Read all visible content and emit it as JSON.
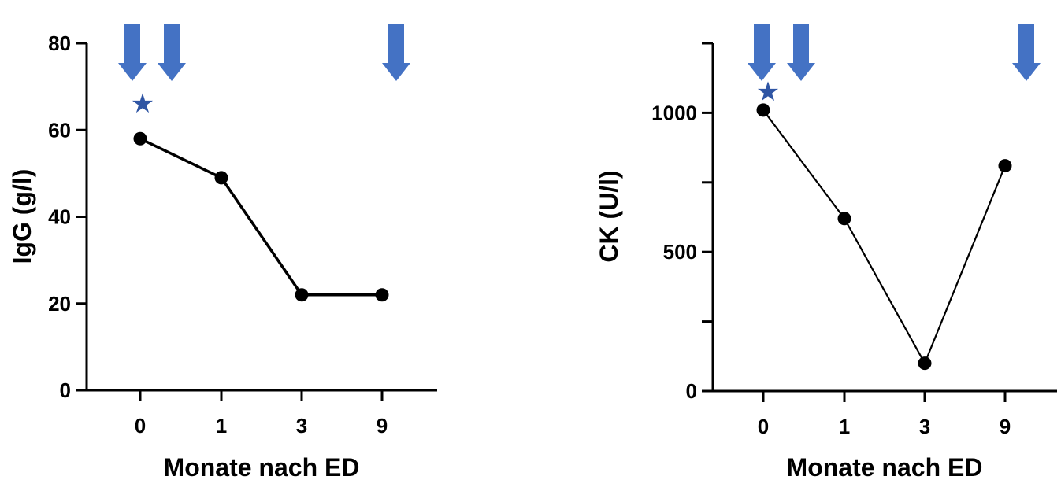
{
  "chart_data": [
    {
      "type": "line",
      "categories": [
        "0",
        "1",
        "3",
        "9"
      ],
      "values": [
        58,
        49,
        22,
        22
      ],
      "ylabel": "IgG (g/l)",
      "xlabel": "Monate nach  ED",
      "ylim": [
        0,
        80
      ],
      "yticks": [
        0,
        20,
        40,
        60,
        80
      ],
      "ytick_labels": [
        "0",
        "20",
        "40",
        "60",
        "80"
      ],
      "grid": false,
      "legend": "none",
      "colors": {
        "line": "#000000",
        "arrow": "#4472C4",
        "star": "#2F55A4"
      }
    },
    {
      "type": "line",
      "categories": [
        "0",
        "1",
        "3",
        "9"
      ],
      "values": [
        1010,
        620,
        100,
        810
      ],
      "ylabel": "CK (U/l)",
      "xlabel": "Monate nach  ED",
      "ylim": [
        0,
        1250
      ],
      "yticks": [
        0,
        250,
        500,
        750,
        1000,
        1250
      ],
      "ytick_labels": [
        "0",
        "",
        "500",
        "",
        "1000",
        ""
      ],
      "grid": false,
      "legend": "none",
      "colors": {
        "line": "#000000",
        "arrow": "#4472C4",
        "star": "#2F55A4"
      }
    }
  ],
  "annotations": {
    "arrow_glyph": "down-arrow-icon",
    "star_glyph": "★"
  }
}
